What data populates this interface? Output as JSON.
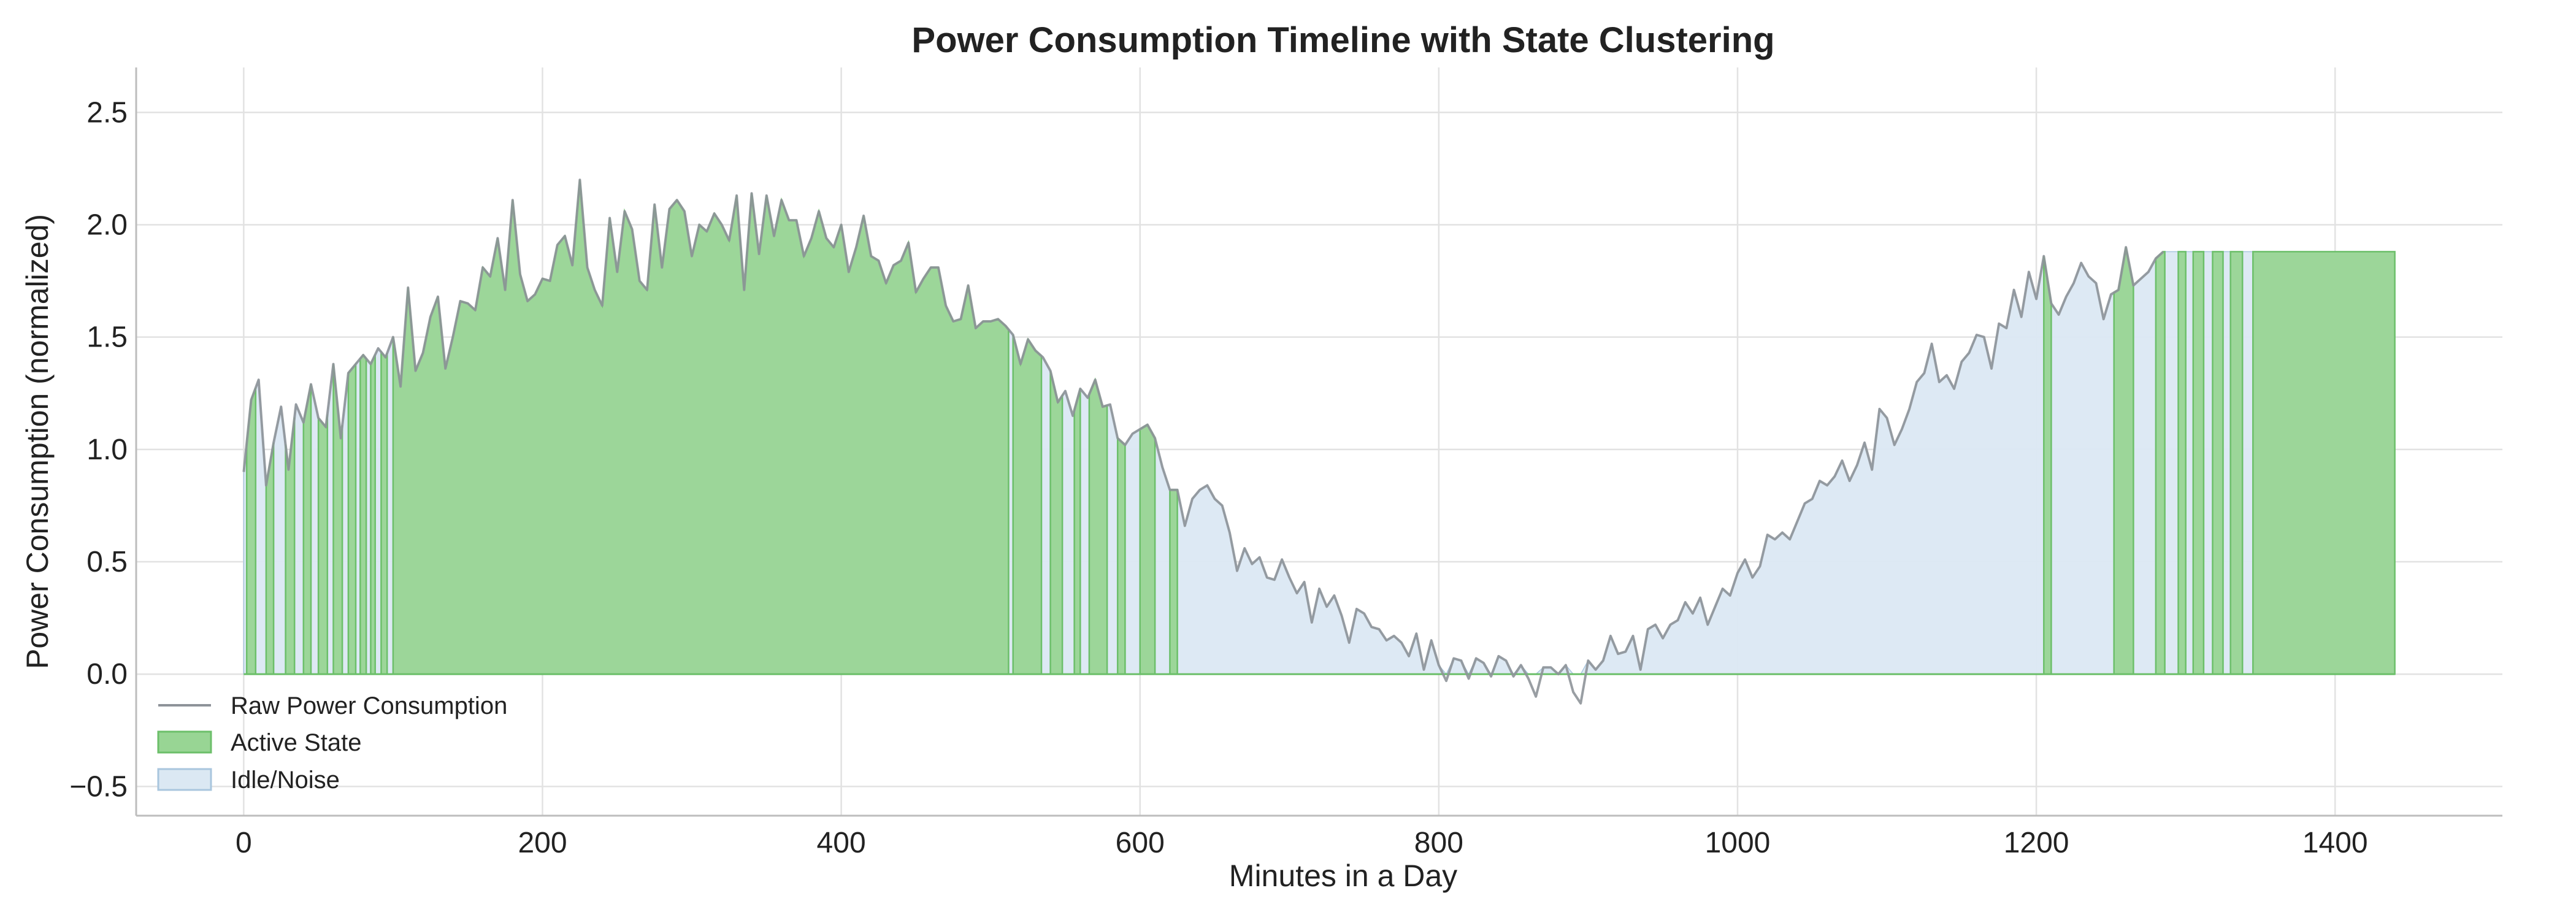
{
  "chart_data": {
    "type": "area",
    "title": "Power Consumption Timeline with State Clustering",
    "xlabel": "Minutes in a Day",
    "ylabel": "Power Consumption (normalized)",
    "xlim": [
      -72,
      1512
    ],
    "ylim": [
      -0.63,
      2.7
    ],
    "xticks": [
      0,
      200,
      400,
      600,
      800,
      1000,
      1200,
      1400
    ],
    "xtick_labels": [
      "0",
      "200",
      "400",
      "600",
      "800",
      "1000",
      "1200",
      "1400"
    ],
    "yticks": [
      -0.5,
      0.0,
      0.5,
      1.0,
      1.5,
      2.0,
      2.5
    ],
    "ytick_labels": [
      "−0.5",
      "0.0",
      "0.5",
      "1.0",
      "1.5",
      "2.0",
      "2.5"
    ],
    "grid": true,
    "legend_position": "lower-left",
    "series": [
      {
        "name": "Raw Power Consumption",
        "kind": "line",
        "color": "#8e9399",
        "x_start": 0,
        "x_step": 5,
        "values": [
          0.9,
          1.22,
          1.31,
          0.84,
          1.03,
          1.19,
          0.91,
          1.2,
          1.12,
          1.29,
          1.14,
          1.1,
          1.38,
          1.05,
          1.34,
          1.38,
          1.42,
          1.38,
          1.45,
          1.41,
          1.5,
          1.28,
          1.72,
          1.35,
          1.43,
          1.59,
          1.68,
          1.36,
          1.5,
          1.66,
          1.65,
          1.62,
          1.81,
          1.77,
          1.94,
          1.71,
          2.11,
          1.78,
          1.66,
          1.69,
          1.76,
          1.75,
          1.91,
          1.95,
          1.82,
          2.2,
          1.81,
          1.71,
          1.64,
          2.03,
          1.79,
          2.06,
          1.98,
          1.75,
          1.71,
          2.09,
          1.81,
          2.07,
          2.11,
          2.06,
          1.86,
          2.0,
          1.97,
          2.05,
          2.0,
          1.93,
          2.13,
          1.71,
          2.14,
          1.87,
          2.13,
          1.95,
          2.11,
          2.02,
          2.02,
          1.86,
          1.94,
          2.06,
          1.94,
          1.9,
          2.0,
          1.79,
          1.9,
          2.04,
          1.86,
          1.84,
          1.74,
          1.82,
          1.84,
          1.92,
          1.7,
          1.76,
          1.81,
          1.81,
          1.64,
          1.57,
          1.58,
          1.73,
          1.54,
          1.57,
          1.57,
          1.58,
          1.55,
          1.51,
          1.38,
          1.49,
          1.44,
          1.41,
          1.35,
          1.21,
          1.26,
          1.15,
          1.27,
          1.23,
          1.31,
          1.19,
          1.2,
          1.05,
          1.02,
          1.07,
          1.09,
          1.11,
          1.05,
          0.92,
          0.82,
          0.82,
          0.66,
          0.78,
          0.82,
          0.84,
          0.78,
          0.75,
          0.63,
          0.46,
          0.56,
          0.49,
          0.52,
          0.43,
          0.42,
          0.51,
          0.43,
          0.36,
          0.41,
          0.23,
          0.38,
          0.3,
          0.35,
          0.26,
          0.14,
          0.29,
          0.27,
          0.21,
          0.2,
          0.15,
          0.17,
          0.14,
          0.08,
          0.18,
          0.02,
          0.15,
          0.04,
          -0.03,
          0.07,
          0.06,
          -0.02,
          0.07,
          0.05,
          -0.01,
          0.08,
          0.06,
          -0.01,
          0.04,
          -0.02,
          -0.1,
          0.03,
          0.03,
          0.0,
          0.04,
          -0.08,
          -0.13,
          0.06,
          0.02,
          0.06,
          0.17,
          0.09,
          0.1,
          0.17,
          0.02,
          0.2,
          0.22,
          0.16,
          0.22,
          0.24,
          0.32,
          0.27,
          0.34,
          0.22,
          0.3,
          0.38,
          0.35,
          0.45,
          0.51,
          0.43,
          0.48,
          0.62,
          0.6,
          0.63,
          0.6,
          0.68,
          0.76,
          0.78,
          0.86,
          0.84,
          0.88,
          0.95,
          0.86,
          0.93,
          1.03,
          0.91,
          1.18,
          1.14,
          1.02,
          1.09,
          1.18,
          1.3,
          1.34,
          1.47,
          1.3,
          1.33,
          1.27,
          1.39,
          1.43,
          1.51,
          1.5,
          1.36,
          1.56,
          1.54,
          1.71,
          1.59,
          1.79,
          1.67,
          1.86,
          1.65,
          1.6,
          1.68,
          1.74,
          1.83,
          1.77,
          1.74,
          1.58,
          1.69,
          1.71,
          1.9,
          1.73,
          1.76,
          1.79,
          1.85,
          1.88
        ]
      }
    ],
    "states": [
      {
        "name": "Active State",
        "kind": "fill",
        "color": "#98d594",
        "edge_color": "#6cbf6a",
        "intervals": [
          [
            2,
            8
          ],
          [
            15,
            20
          ],
          [
            28,
            34
          ],
          [
            40,
            45
          ],
          [
            50,
            56
          ],
          [
            60,
            66
          ],
          [
            70,
            75
          ],
          [
            78,
            82
          ],
          [
            85,
            88
          ],
          [
            92,
            96
          ],
          [
            100,
            512
          ],
          [
            515,
            534
          ],
          [
            540,
            548
          ],
          [
            556,
            560
          ],
          [
            566,
            578
          ],
          [
            585,
            590
          ],
          [
            600,
            610
          ],
          [
            620,
            625
          ],
          [
            1205,
            1210
          ],
          [
            1252,
            1265
          ],
          [
            1280,
            1286
          ],
          [
            1295,
            1300
          ],
          [
            1305,
            1312
          ],
          [
            1318,
            1325
          ],
          [
            1330,
            1338
          ],
          [
            1345,
            1440
          ]
        ]
      },
      {
        "name": "Idle/Noise",
        "kind": "fill",
        "color": "#dbe8f3",
        "edge_color": "#a9c6de",
        "intervals": [
          [
            0,
            1440
          ]
        ]
      }
    ]
  },
  "legend": {
    "items": [
      {
        "label": "Raw Power Consumption",
        "kind": "line",
        "color": "#8e9399"
      },
      {
        "label": "Active State",
        "kind": "patch",
        "color": "#98d594",
        "edge": "#6cbf6a"
      },
      {
        "label": "Idle/Noise",
        "kind": "patch",
        "color": "#dbe8f3",
        "edge": "#a9c6de"
      }
    ]
  },
  "colors": {
    "grid": "#e2e2e2",
    "spine": "#bdbdbd",
    "text": "#222222"
  }
}
